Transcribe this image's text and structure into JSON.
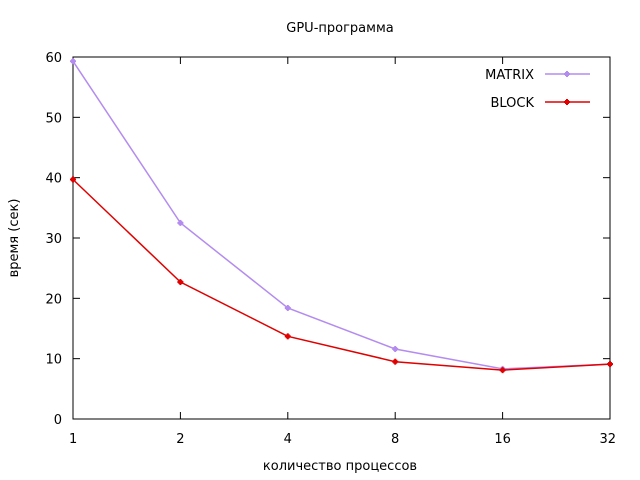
{
  "chart_data": {
    "type": "line",
    "title": "GPU-программа",
    "xlabel": "количество процессов",
    "ylabel": "время (сек)",
    "x_scale": "log2",
    "categories": [
      "1",
      "2",
      "4",
      "8",
      "16",
      "32"
    ],
    "x": [
      1,
      2,
      4,
      8,
      16,
      32
    ],
    "ylim": [
      0,
      60
    ],
    "yticks": [
      0,
      10,
      20,
      30,
      40,
      50,
      60
    ],
    "grid": false,
    "legend_position": "top-right",
    "series": [
      {
        "name": "MATRIX",
        "color": "#b48cf0",
        "values": [
          59.3,
          32.5,
          18.4,
          11.6,
          8.3,
          9.1
        ]
      },
      {
        "name": "BLOCK",
        "color": "#e00000",
        "values": [
          39.7,
          22.7,
          13.7,
          9.5,
          8.1,
          9.1
        ]
      }
    ]
  }
}
